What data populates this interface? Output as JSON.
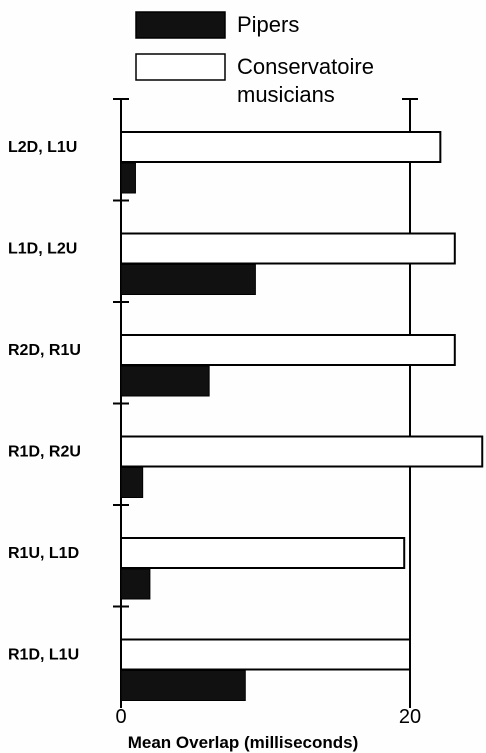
{
  "chart_data": {
    "type": "bar",
    "orientation": "horizontal",
    "title": "",
    "xlabel": "Mean Overlap (milliseconds)",
    "ylabel": "",
    "xlim": [
      0,
      25
    ],
    "xticks": [
      0,
      20
    ],
    "grid": false,
    "legend_position": "top",
    "categories": [
      "L2D, L1U",
      "L1D, L2U",
      "R2D, R1U",
      "R1D, R2U",
      "R1U, L1D",
      "R1D, L1U"
    ],
    "series": [
      {
        "name": "Conservatoire musicians",
        "fill": "#ffffff",
        "values": [
          22.1,
          23.1,
          23.1,
          25.0,
          19.6,
          20.0
        ]
      },
      {
        "name": "Pipers",
        "fill": "#111111",
        "values": [
          1.0,
          9.3,
          6.1,
          1.5,
          2.0,
          8.6
        ]
      }
    ],
    "legend": {
      "pipers": "Pipers",
      "conservatoire_line1": "Conservatoire",
      "conservatoire_line2": "musicians"
    }
  }
}
